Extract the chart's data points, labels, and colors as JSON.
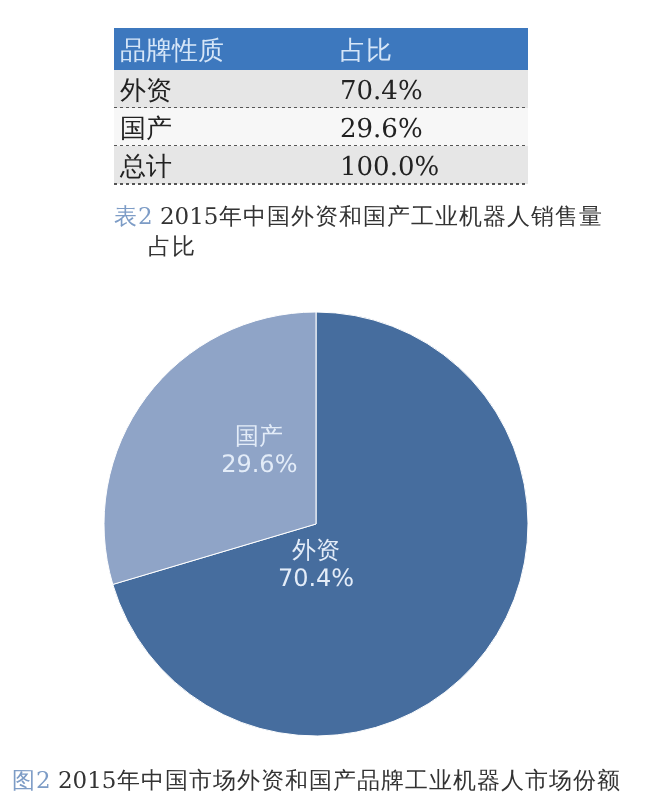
{
  "chart_data": [
    {
      "type": "other",
      "title": "表2 2015年中国外资和国产工业机器人销售量占比",
      "annotations": [
        "品牌性质",
        "占比",
        "外资",
        "70.4%",
        "国产",
        "29.6%",
        "总计",
        "100.0%"
      ]
    },
    {
      "type": "pie",
      "title": "图2 2015年中国市场外资和国产品牌工业机器人市场份额",
      "categories": [
        "外资",
        "国产"
      ],
      "values": [
        70.4,
        29.6
      ],
      "colors": [
        "#466d9e",
        "#8fa4c7"
      ],
      "value_labels": [
        "70.4%",
        "29.6%"
      ]
    }
  ]
}
